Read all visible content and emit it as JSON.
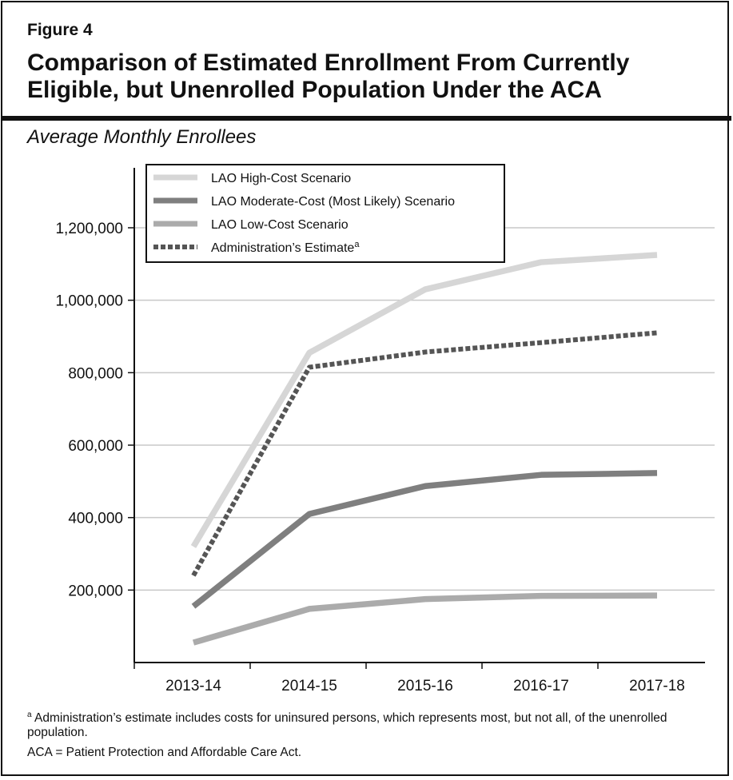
{
  "figure_label": "Figure 4",
  "title": "Comparison of Estimated Enrollment From Currently Eligible, but Unenrolled Population Under the ACA",
  "subtitle": "Average Monthly Enrollees",
  "footnote_a_marker": "a",
  "footnote_a": "Administration’s estimate includes costs for uninsured persons, which represents most, but not all, of the unenrolled population.",
  "footnote_acronym": "ACA = Patient Protection and Affordable Care Act.",
  "chart_data": {
    "type": "line",
    "categories": [
      "2013-14",
      "2014-15",
      "2015-16",
      "2016-17",
      "2017-18"
    ],
    "ylim": [
      0,
      1300000
    ],
    "yticks": [
      200000,
      400000,
      600000,
      800000,
      1000000,
      1200000
    ],
    "ytick_labels": [
      "200,000",
      "400,000",
      "600,000",
      "800,000",
      "1,000,000",
      "1,200,000"
    ],
    "grid": true,
    "legend_position": "top-left",
    "series": [
      {
        "name": "LAO High-Cost Scenario",
        "values": [
          320000,
          855000,
          1030000,
          1105000,
          1125000
        ],
        "color": "#d6d6d6",
        "dash": false
      },
      {
        "name": "LAO Moderate-Cost (Most Likely) Scenario",
        "values": [
          155000,
          410000,
          487000,
          518000,
          523000
        ],
        "color": "#7f7f7f",
        "dash": false
      },
      {
        "name": "LAO Low-Cost Scenario",
        "values": [
          55000,
          148000,
          175000,
          184000,
          185000
        ],
        "color": "#ababab",
        "dash": false
      },
      {
        "name": "Administration’s Estimate",
        "name_superscript": "a",
        "values": [
          240000,
          815000,
          857000,
          883000,
          910000
        ],
        "color": "#555555",
        "dash": true
      }
    ]
  }
}
